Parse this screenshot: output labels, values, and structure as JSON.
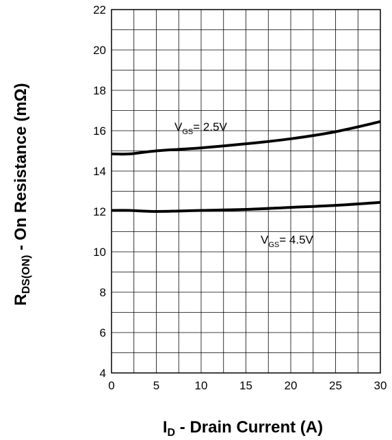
{
  "chart_data": {
    "type": "line",
    "title": "",
    "xlabel": {
      "main": "I",
      "sub": "D",
      "rest": " - Drain Current (A)"
    },
    "ylabel": {
      "main": "R",
      "sub": "DS(ON)",
      "rest": " - On Resistance (mΩ)"
    },
    "xlim": [
      0,
      30
    ],
    "ylim": [
      4,
      22
    ],
    "x_ticks": [
      "0",
      "5",
      "10",
      "15",
      "20",
      "25",
      "30"
    ],
    "y_ticks": [
      "4",
      "6",
      "8",
      "10",
      "12",
      "14",
      "16",
      "18",
      "20",
      "22"
    ],
    "grid": true,
    "series": [
      {
        "name": {
          "main": "V",
          "sub": "GS",
          "rest": "= 2.5V"
        },
        "x": [
          0,
          2,
          5,
          10,
          15,
          20,
          25,
          30
        ],
        "y": [
          14.85,
          14.85,
          15.0,
          15.15,
          15.35,
          15.6,
          15.95,
          16.45
        ]
      },
      {
        "name": {
          "main": "V",
          "sub": "GS",
          "rest": "= 4.5V"
        },
        "x": [
          0,
          2,
          5,
          10,
          15,
          20,
          25,
          30
        ],
        "y": [
          12.05,
          12.05,
          12.0,
          12.05,
          12.1,
          12.2,
          12.3,
          12.45
        ]
      }
    ]
  }
}
